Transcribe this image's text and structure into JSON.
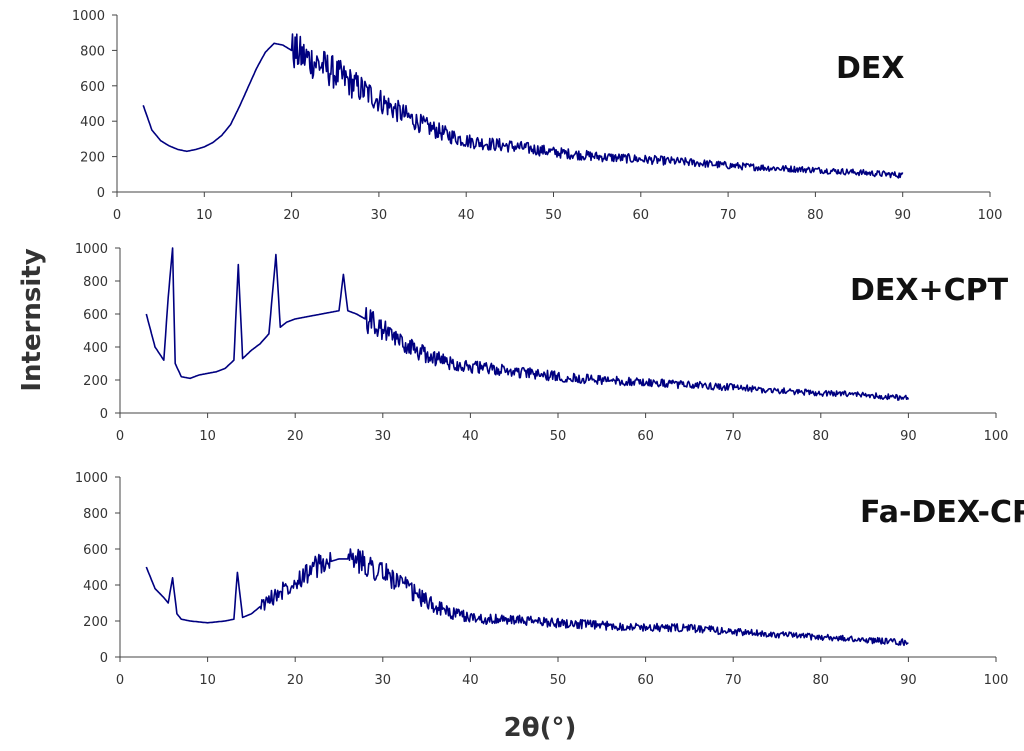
{
  "chart_data": {
    "type": "line",
    "xlabel": "2θ(°)",
    "ylabel": "Internsity",
    "line_color": "#000080",
    "panels": [
      {
        "label": "DEX",
        "xlim": [
          0,
          100
        ],
        "ylim": [
          0,
          1000
        ],
        "xticks": [
          0,
          10,
          20,
          30,
          40,
          50,
          60,
          70,
          80,
          90,
          100
        ],
        "yticks": [
          0,
          200,
          400,
          600,
          800,
          1000
        ],
        "series": [
          {
            "x": [
              3,
              4,
              5,
              6,
              7,
              8,
              9,
              10,
              11,
              12,
              13,
              14,
              15,
              16,
              17,
              18,
              19,
              20,
              22,
              24,
              26,
              28,
              30,
              32,
              35,
              38,
              40,
              43,
              45,
              48,
              50,
              55,
              60,
              65,
              70,
              75,
              80,
              85,
              90
            ],
            "y": [
              490,
              350,
              290,
              260,
              240,
              230,
              240,
              255,
              280,
              320,
              380,
              480,
              590,
              700,
              790,
              840,
              830,
              800,
              750,
              700,
              640,
              580,
              520,
              460,
              380,
              320,
              290,
              270,
              260,
              240,
              225,
              200,
              185,
              170,
              150,
              135,
              125,
              110,
              95
            ]
          }
        ]
      },
      {
        "label": "DEX+CPT",
        "xlim": [
          0,
          100
        ],
        "ylim": [
          0,
          1000
        ],
        "xticks": [
          0,
          10,
          20,
          30,
          40,
          50,
          60,
          70,
          80,
          90,
          100
        ],
        "yticks": [
          0,
          200,
          400,
          600,
          800,
          1000
        ],
        "series": [
          {
            "x": [
              3,
              4,
              5,
              5.5,
              6,
              6.3,
              7,
              8,
              9,
              10,
              11,
              12,
              13,
              13.5,
              14,
              15,
              16,
              17,
              17.8,
              18.3,
              19,
              20,
              21,
              22,
              23,
              24,
              25,
              25.5,
              26,
              27,
              28,
              30,
              32,
              35,
              38,
              40,
              45,
              50,
              55,
              60,
              65,
              70,
              75,
              80,
              85,
              90
            ],
            "y": [
              600,
              400,
              320,
              700,
              1000,
              300,
              220,
              210,
              230,
              240,
              250,
              270,
              320,
              900,
              330,
              380,
              420,
              480,
              960,
              520,
              550,
              570,
              580,
              590,
              600,
              610,
              620,
              840,
              620,
              600,
              570,
              500,
              430,
              350,
              300,
              280,
              250,
              220,
              200,
              185,
              170,
              155,
              135,
              120,
              110,
              90
            ]
          }
        ]
      },
      {
        "label": "Fa-DEX-CPT",
        "xlim": [
          0,
          100
        ],
        "ylim": [
          0,
          1000
        ],
        "xticks": [
          0,
          10,
          20,
          30,
          40,
          50,
          60,
          70,
          80,
          90,
          100
        ],
        "yticks": [
          0,
          200,
          400,
          600,
          800,
          1000
        ],
        "series": [
          {
            "x": [
              3,
              4,
              5,
              5.5,
              6,
              6.5,
              7,
              8,
              9,
              10,
              11,
              12,
              13,
              13.4,
              14,
              15,
              16,
              18,
              20,
              22,
              24,
              25,
              26,
              28,
              30,
              32,
              34,
              36,
              38,
              40,
              42,
              45,
              50,
              55,
              60,
              65,
              70,
              75,
              80,
              85,
              90
            ],
            "y": [
              500,
              380,
              330,
              300,
              440,
              240,
              210,
              200,
              195,
              190,
              195,
              200,
              210,
              470,
              220,
              240,
              280,
              350,
              430,
              490,
              530,
              545,
              545,
              520,
              470,
              410,
              340,
              280,
              240,
              220,
              210,
              205,
              190,
              175,
              165,
              160,
              140,
              125,
              110,
              95,
              80
            ]
          }
        ]
      }
    ]
  }
}
